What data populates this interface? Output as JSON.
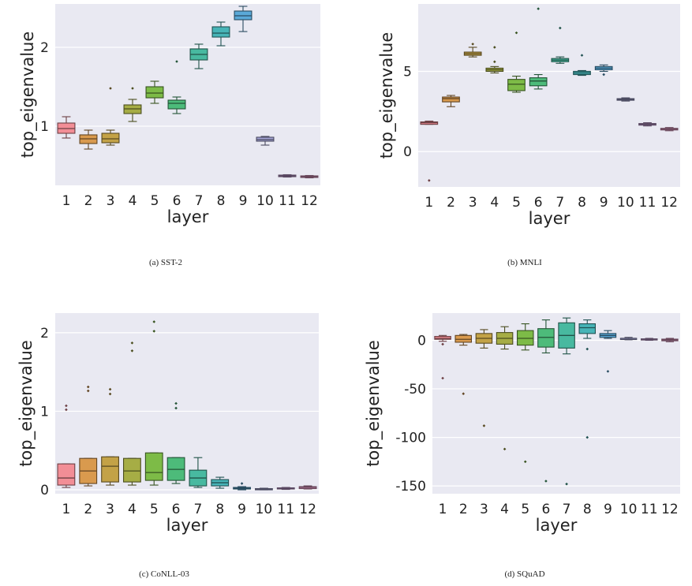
{
  "chart_data": [
    {
      "type": "box",
      "caption": "(a) SST-2",
      "xlabel": "layer",
      "ylabel": "top_eigenvalue",
      "categories": [
        "1",
        "2",
        "3",
        "4",
        "5",
        "6",
        "7",
        "8",
        "9",
        "10",
        "11",
        "12"
      ],
      "ylim": [
        0.25,
        2.55
      ],
      "yticks": [
        1,
        2
      ],
      "colors": [
        "#f28e96",
        "#d99a4e",
        "#c3a247",
        "#a6ad45",
        "#7dbb47",
        "#4dbb7a",
        "#48b9a0",
        "#47b4b7",
        "#5aa9d8",
        "#a5a5d6",
        "#c9a0d9",
        "#e79bc8"
      ],
      "boxes": [
        {
          "q1": 0.91,
          "med": 0.97,
          "q3": 1.04,
          "lo": 0.85,
          "hi": 1.12,
          "fl": []
        },
        {
          "q1": 0.78,
          "med": 0.84,
          "q3": 0.89,
          "lo": 0.71,
          "hi": 0.95,
          "fl": []
        },
        {
          "q1": 0.79,
          "med": 0.84,
          "q3": 0.91,
          "lo": 0.76,
          "hi": 0.95,
          "fl": [
            1.48
          ]
        },
        {
          "q1": 1.16,
          "med": 1.22,
          "q3": 1.27,
          "lo": 1.06,
          "hi": 1.34,
          "fl": [
            1.48
          ]
        },
        {
          "q1": 1.36,
          "med": 1.42,
          "q3": 1.5,
          "lo": 1.29,
          "hi": 1.57,
          "fl": []
        },
        {
          "q1": 1.22,
          "med": 1.29,
          "q3": 1.33,
          "lo": 1.16,
          "hi": 1.37,
          "fl": [
            1.82
          ]
        },
        {
          "q1": 1.84,
          "med": 1.91,
          "q3": 1.98,
          "lo": 1.73,
          "hi": 2.04,
          "fl": []
        },
        {
          "q1": 2.13,
          "med": 2.18,
          "q3": 2.26,
          "lo": 2.02,
          "hi": 2.32,
          "fl": []
        },
        {
          "q1": 2.35,
          "med": 2.4,
          "q3": 2.46,
          "lo": 2.2,
          "hi": 2.52,
          "fl": []
        },
        {
          "q1": 0.81,
          "med": 0.83,
          "q3": 0.86,
          "lo": 0.76,
          "hi": 0.87,
          "fl": []
        },
        {
          "q1": 0.36,
          "med": 0.37,
          "q3": 0.38,
          "lo": 0.355,
          "hi": 0.385,
          "fl": []
        },
        {
          "q1": 0.35,
          "med": 0.36,
          "q3": 0.37,
          "lo": 0.345,
          "hi": 0.375,
          "fl": []
        }
      ]
    },
    {
      "type": "box",
      "caption": "(b) MNLI",
      "xlabel": "layer",
      "ylabel": "top_eigenvalue",
      "categories": [
        "1",
        "2",
        "3",
        "4",
        "5",
        "6",
        "7",
        "8",
        "9",
        "10",
        "11",
        "12"
      ],
      "ylim": [
        -2.2,
        9.2
      ],
      "yticks": [
        0,
        5
      ],
      "colors": [
        "#f28e96",
        "#d99a4e",
        "#c3a247",
        "#a6ad45",
        "#7dbb47",
        "#4dbb7a",
        "#48b9a0",
        "#47b4b7",
        "#5aa9d8",
        "#a5a5d6",
        "#c9a0d9",
        "#e79bc8"
      ],
      "boxes": [
        {
          "q1": 1.7,
          "med": 1.8,
          "q3": 1.85,
          "lo": 1.7,
          "hi": 1.9,
          "fl": [
            -1.8
          ]
        },
        {
          "q1": 3.1,
          "med": 3.3,
          "q3": 3.4,
          "lo": 2.8,
          "hi": 3.5,
          "fl": []
        },
        {
          "q1": 6.0,
          "med": 6.1,
          "q3": 6.2,
          "lo": 5.9,
          "hi": 6.5,
          "fl": [
            6.7
          ]
        },
        {
          "q1": 5.0,
          "med": 5.1,
          "q3": 5.2,
          "lo": 4.9,
          "hi": 5.3,
          "fl": [
            6.5,
            5.6
          ]
        },
        {
          "q1": 3.8,
          "med": 4.2,
          "q3": 4.5,
          "lo": 3.7,
          "hi": 4.7,
          "fl": [
            7.4
          ]
        },
        {
          "q1": 4.1,
          "med": 4.4,
          "q3": 4.6,
          "lo": 3.9,
          "hi": 4.8,
          "fl": [
            8.9
          ]
        },
        {
          "q1": 5.6,
          "med": 5.7,
          "q3": 5.8,
          "lo": 5.5,
          "hi": 5.9,
          "fl": [
            7.7
          ]
        },
        {
          "q1": 4.8,
          "med": 4.9,
          "q3": 5.0,
          "lo": 4.75,
          "hi": 5.05,
          "fl": [
            6.0
          ]
        },
        {
          "q1": 5.1,
          "med": 5.2,
          "q3": 5.3,
          "lo": 5.0,
          "hi": 5.4,
          "fl": [
            4.8
          ]
        },
        {
          "q1": 3.2,
          "med": 3.25,
          "q3": 3.3,
          "lo": 3.15,
          "hi": 3.35,
          "fl": []
        },
        {
          "q1": 1.65,
          "med": 1.7,
          "q3": 1.75,
          "lo": 1.6,
          "hi": 1.8,
          "fl": []
        },
        {
          "q1": 1.35,
          "med": 1.4,
          "q3": 1.45,
          "lo": 1.3,
          "hi": 1.5,
          "fl": []
        }
      ]
    },
    {
      "type": "box",
      "caption": "(c) CoNLL-03",
      "xlabel": "layer",
      "ylabel": "top_eigenvalue",
      "categories": [
        "1",
        "2",
        "3",
        "4",
        "5",
        "6",
        "7",
        "8",
        "9",
        "10",
        "11",
        "12"
      ],
      "ylim": [
        -0.05,
        2.25
      ],
      "yticks": [
        0,
        1,
        2
      ],
      "colors": [
        "#f28e96",
        "#d99a4e",
        "#c3a247",
        "#a6ad45",
        "#7dbb47",
        "#4dbb7a",
        "#48b9a0",
        "#47b4b7",
        "#5aa9d8",
        "#a5a5d6",
        "#c9a0d9",
        "#e79bc8"
      ],
      "boxes": [
        {
          "q1": 0.06,
          "med": 0.15,
          "q3": 0.33,
          "lo": 0.03,
          "hi": 0.33,
          "fl": [
            1.07,
            1.02
          ]
        },
        {
          "q1": 0.08,
          "med": 0.24,
          "q3": 0.4,
          "lo": 0.05,
          "hi": 0.4,
          "fl": [
            1.31,
            1.26
          ]
        },
        {
          "q1": 0.1,
          "med": 0.3,
          "q3": 0.42,
          "lo": 0.06,
          "hi": 0.42,
          "fl": [
            1.28,
            1.22
          ]
        },
        {
          "q1": 0.1,
          "med": 0.24,
          "q3": 0.4,
          "lo": 0.06,
          "hi": 0.4,
          "fl": [
            1.87,
            1.77
          ]
        },
        {
          "q1": 0.12,
          "med": 0.22,
          "q3": 0.47,
          "lo": 0.06,
          "hi": 0.47,
          "fl": [
            2.14,
            2.02
          ]
        },
        {
          "q1": 0.12,
          "med": 0.26,
          "q3": 0.41,
          "lo": 0.08,
          "hi": 0.41,
          "fl": [
            1.1,
            1.04
          ]
        },
        {
          "q1": 0.05,
          "med": 0.15,
          "q3": 0.25,
          "lo": 0.03,
          "hi": 0.41,
          "fl": []
        },
        {
          "q1": 0.05,
          "med": 0.09,
          "q3": 0.13,
          "lo": 0.02,
          "hi": 0.16,
          "fl": []
        },
        {
          "q1": 0.01,
          "med": 0.02,
          "q3": 0.03,
          "lo": 0.0,
          "hi": 0.04,
          "fl": [
            0.08
          ]
        },
        {
          "q1": 0.0,
          "med": 0.01,
          "q3": 0.015,
          "lo": 0.0,
          "hi": 0.02,
          "fl": []
        },
        {
          "q1": 0.01,
          "med": 0.015,
          "q3": 0.025,
          "lo": 0.005,
          "hi": 0.03,
          "fl": []
        },
        {
          "q1": 0.015,
          "med": 0.03,
          "q3": 0.04,
          "lo": 0.01,
          "hi": 0.05,
          "fl": []
        }
      ]
    },
    {
      "type": "box",
      "caption": "(d) SQuAD",
      "xlabel": "layer",
      "ylabel": "top_eigenvalue",
      "categories": [
        "1",
        "2",
        "3",
        "4",
        "5",
        "6",
        "7",
        "8",
        "9",
        "10",
        "11",
        "12"
      ],
      "ylim": [
        -158,
        28
      ],
      "yticks": [
        0,
        -50,
        -100,
        -150
      ],
      "colors": [
        "#f28e96",
        "#d99a4e",
        "#c3a247",
        "#a6ad45",
        "#7dbb47",
        "#4dbb7a",
        "#48b9a0",
        "#47b4b7",
        "#5aa9d8",
        "#a5a5d6",
        "#c9a0d9",
        "#e79bc8"
      ],
      "boxes": [
        {
          "q1": 1,
          "med": 2,
          "q3": 4,
          "lo": -1,
          "hi": 5,
          "fl": [
            -4,
            -39
          ]
        },
        {
          "q1": -2,
          "med": 1,
          "q3": 5,
          "lo": -5,
          "hi": 6,
          "fl": [
            -55
          ]
        },
        {
          "q1": -3,
          "med": 2,
          "q3": 7,
          "lo": -8,
          "hi": 11,
          "fl": [
            -88
          ]
        },
        {
          "q1": -4,
          "med": 2,
          "q3": 8,
          "lo": -9,
          "hi": 14,
          "fl": [
            -112
          ]
        },
        {
          "q1": -5,
          "med": 2,
          "q3": 10,
          "lo": -10,
          "hi": 17,
          "fl": [
            -125
          ]
        },
        {
          "q1": -7,
          "med": 3,
          "q3": 12,
          "lo": -13,
          "hi": 21,
          "fl": [
            -145
          ]
        },
        {
          "q1": -8,
          "med": 5,
          "q3": 18,
          "lo": -14,
          "hi": 23,
          "fl": [
            -148
          ]
        },
        {
          "q1": 7,
          "med": 13,
          "q3": 17,
          "lo": 2,
          "hi": 21,
          "fl": [
            -9,
            -100
          ]
        },
        {
          "q1": 3,
          "med": 5,
          "q3": 7,
          "lo": 2,
          "hi": 10,
          "fl": [
            -32
          ]
        },
        {
          "q1": 1,
          "med": 2,
          "q3": 2,
          "lo": 0.5,
          "hi": 3,
          "fl": []
        },
        {
          "q1": 0.5,
          "med": 1,
          "q3": 1.5,
          "lo": 0,
          "hi": 2,
          "fl": []
        },
        {
          "q1": -0.5,
          "med": 0.5,
          "q3": 1.2,
          "lo": -1.5,
          "hi": 2,
          "fl": []
        }
      ]
    }
  ]
}
